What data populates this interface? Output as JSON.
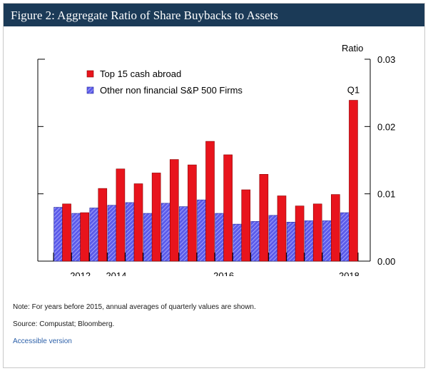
{
  "figure": {
    "title": "Figure 2: Aggregate Ratio of Share Buybacks to Assets",
    "note": "Note: For years before 2015, annual averages of quarterly values are shown.",
    "source": "Source: Compustat; Bloomberg.",
    "accessible_link": "Accessible version"
  },
  "colors": {
    "red": "#e8141c",
    "blue_fill": "#5b5bea",
    "blue_stripe": "#b9b9ff",
    "title_bg": "#1b3a57"
  },
  "chart_data": {
    "type": "bar",
    "title": "",
    "ylabel": "Ratio",
    "xlabel": "",
    "ylim": [
      0,
      0.03
    ],
    "yticks": [
      "0.00",
      "0.01",
      "0.02",
      "0.03"
    ],
    "categories": [
      "2011",
      "2012",
      "2013",
      "2014",
      "2015Q1",
      "2015Q2",
      "2015Q3",
      "2015Q4",
      "2016Q1",
      "2016Q2",
      "2016Q3",
      "2016Q4",
      "2017Q1",
      "2017Q2",
      "2017Q3",
      "2017Q4",
      "2018Q1"
    ],
    "x_tick_labels": [
      {
        "label": "2012",
        "category": "2012"
      },
      {
        "label": "2014",
        "category": "2014"
      },
      {
        "label": "2016",
        "category": "2016Q2"
      },
      {
        "label": "2018",
        "category": "2018Q1"
      }
    ],
    "series": [
      {
        "name": "Top 15 cash abroad",
        "values": [
          0.0085,
          0.0072,
          0.0108,
          0.0137,
          0.0115,
          0.0131,
          0.0151,
          0.0143,
          0.0178,
          0.0158,
          0.0106,
          0.0129,
          0.0097,
          0.0082,
          0.0085,
          0.0099,
          0.0239
        ]
      },
      {
        "name": "Other non financial S&P 500 Firms",
        "values": [
          0.008,
          0.0071,
          0.0079,
          0.0083,
          0.0087,
          0.0071,
          0.0086,
          0.0081,
          0.0091,
          0.0071,
          0.0055,
          0.0059,
          0.0068,
          0.0058,
          0.006,
          0.006,
          0.0072
        ]
      }
    ],
    "annotations": [
      {
        "text": "Q1",
        "category": "2018Q1"
      }
    ],
    "legend_position": "top-left"
  }
}
